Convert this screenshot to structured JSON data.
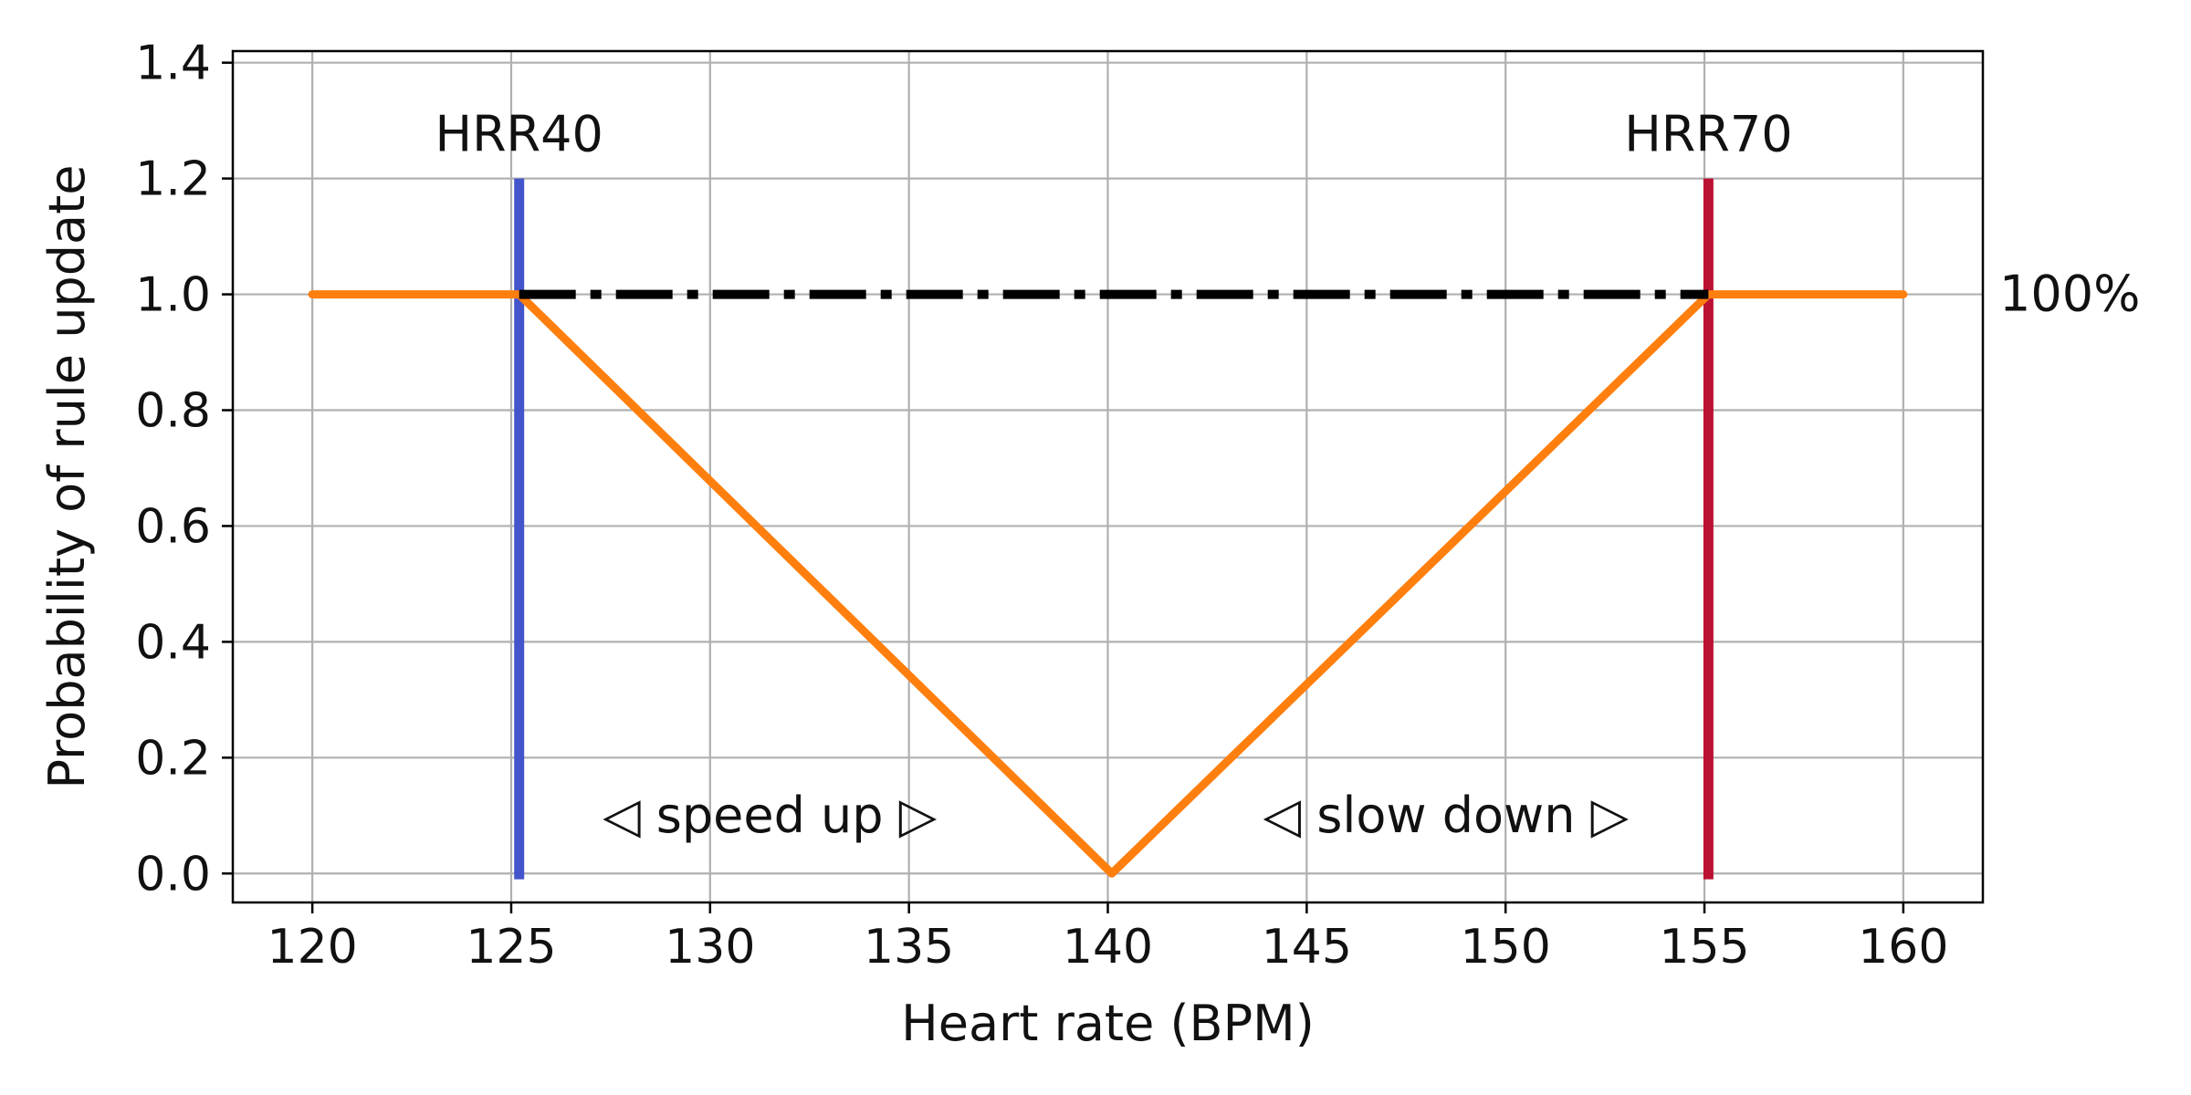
{
  "chart_data": {
    "type": "line",
    "title": "",
    "xlabel": "Heart rate (BPM)",
    "ylabel": "Probability of rule update",
    "xlim": [
      118,
      162
    ],
    "ylim": [
      -0.05,
      1.42
    ],
    "x_ticks": [
      120,
      125,
      130,
      135,
      140,
      145,
      150,
      155,
      160
    ],
    "x_tick_labels": [
      "120",
      "125",
      "130",
      "135",
      "140",
      "145",
      "150",
      "155",
      "160"
    ],
    "y_ticks": [
      0.0,
      0.2,
      0.4,
      0.6,
      0.8,
      1.0,
      1.2,
      1.4
    ],
    "y_tick_labels": [
      "0.0",
      "0.2",
      "0.4",
      "0.6",
      "0.8",
      "1.0",
      "1.2",
      "1.4"
    ],
    "grid": true,
    "series": [
      {
        "style": "solid",
        "color": "#ff7f0e",
        "x": [
          120,
          125.2,
          140.1,
          155.1,
          160
        ],
        "y": [
          1.0,
          1.0,
          0.0,
          1.0,
          1.0
        ]
      },
      {
        "style": "dashdot",
        "color": "#000000",
        "x": [
          125.2,
          155.1
        ],
        "y": [
          1.0,
          1.0
        ]
      }
    ],
    "vertical_lines": [
      {
        "label": "HRR40",
        "x": 125.2,
        "y_range": [
          -0.01,
          1.2
        ],
        "color": "#4455cc"
      },
      {
        "label": "HRR70",
        "x": 155.1,
        "y_range": [
          -0.01,
          1.2
        ],
        "color": "#bb1133"
      }
    ],
    "annotations": [
      {
        "text": "◁ speed up ▷",
        "x": 131.5,
        "y": 0.1
      },
      {
        "text": "◁ slow down ▷",
        "x": 148.5,
        "y": 0.1
      }
    ],
    "right_label": {
      "text": "100%",
      "y": 1.0
    }
  }
}
